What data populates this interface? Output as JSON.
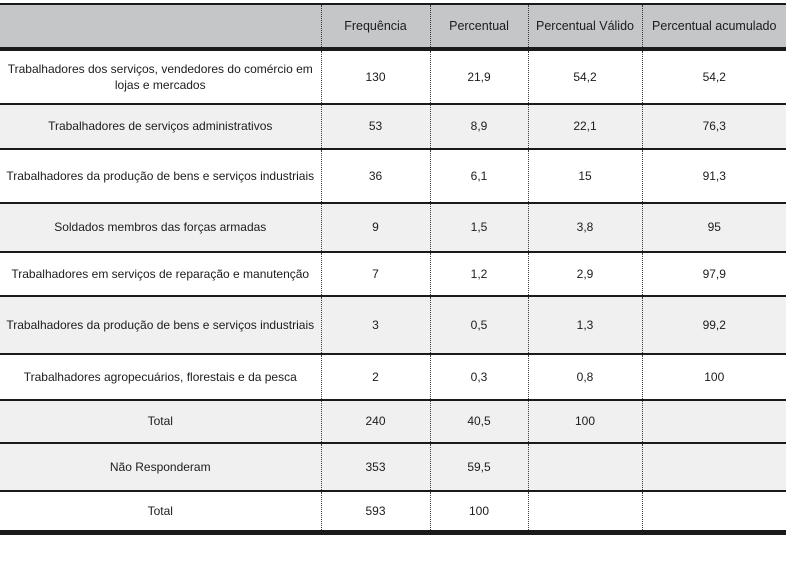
{
  "colors": {
    "header_bg": "#c5c6c8",
    "shaded_row_bg": "#f0f0f0",
    "border": "#1a1a1a",
    "text": "#1c1c1c"
  },
  "table": {
    "columns": [
      {
        "key": "label",
        "label": ""
      },
      {
        "key": "frequencia",
        "label": "Frequência"
      },
      {
        "key": "percentual",
        "label": "Percentual"
      },
      {
        "key": "valido",
        "label": "Percentual Válido"
      },
      {
        "key": "acumulado",
        "label": "Percentual acumulado"
      }
    ],
    "rows": [
      {
        "label": "Trabalhadores dos serviços, vendedores do comércio em lojas e mercados",
        "frequencia": "130",
        "percentual": "21,9",
        "valido": "54,2",
        "acumulado": "54,2",
        "shaded": false
      },
      {
        "label": "Trabalhadores de serviços administrativos",
        "frequencia": "53",
        "percentual": "8,9",
        "valido": "22,1",
        "acumulado": "76,3",
        "shaded": true
      },
      {
        "label": "Trabalhadores da produção de bens e serviços industriais",
        "frequencia": "36",
        "percentual": "6,1",
        "valido": "15",
        "acumulado": "91,3",
        "shaded": false
      },
      {
        "label": "Soldados membros das forças armadas",
        "frequencia": "9",
        "percentual": "1,5",
        "valido": "3,8",
        "acumulado": "95",
        "shaded": true
      },
      {
        "label": "Trabalhadores em serviços de reparação e manutenção",
        "frequencia": "7",
        "percentual": "1,2",
        "valido": "2,9",
        "acumulado": "97,9",
        "shaded": false
      },
      {
        "label": "Trabalhadores da produção de bens e serviços industriais",
        "frequencia": "3",
        "percentual": "0,5",
        "valido": "1,3",
        "acumulado": "99,2",
        "shaded": true
      },
      {
        "label": "Trabalhadores agropecuários, florestais e da pesca",
        "frequencia": "2",
        "percentual": "0,3",
        "valido": "0,8",
        "acumulado": "100",
        "shaded": false
      },
      {
        "label": "Total",
        "frequencia": "240",
        "percentual": "40,5",
        "valido": "100",
        "acumulado": "",
        "shaded": true
      },
      {
        "label": "Não Responderam",
        "frequencia": "353",
        "percentual": "59,5",
        "valido": "",
        "acumulado": "",
        "shaded": true
      },
      {
        "label": "Total",
        "frequencia": "593",
        "percentual": "100",
        "valido": "",
        "acumulado": "",
        "shaded": false
      }
    ]
  }
}
